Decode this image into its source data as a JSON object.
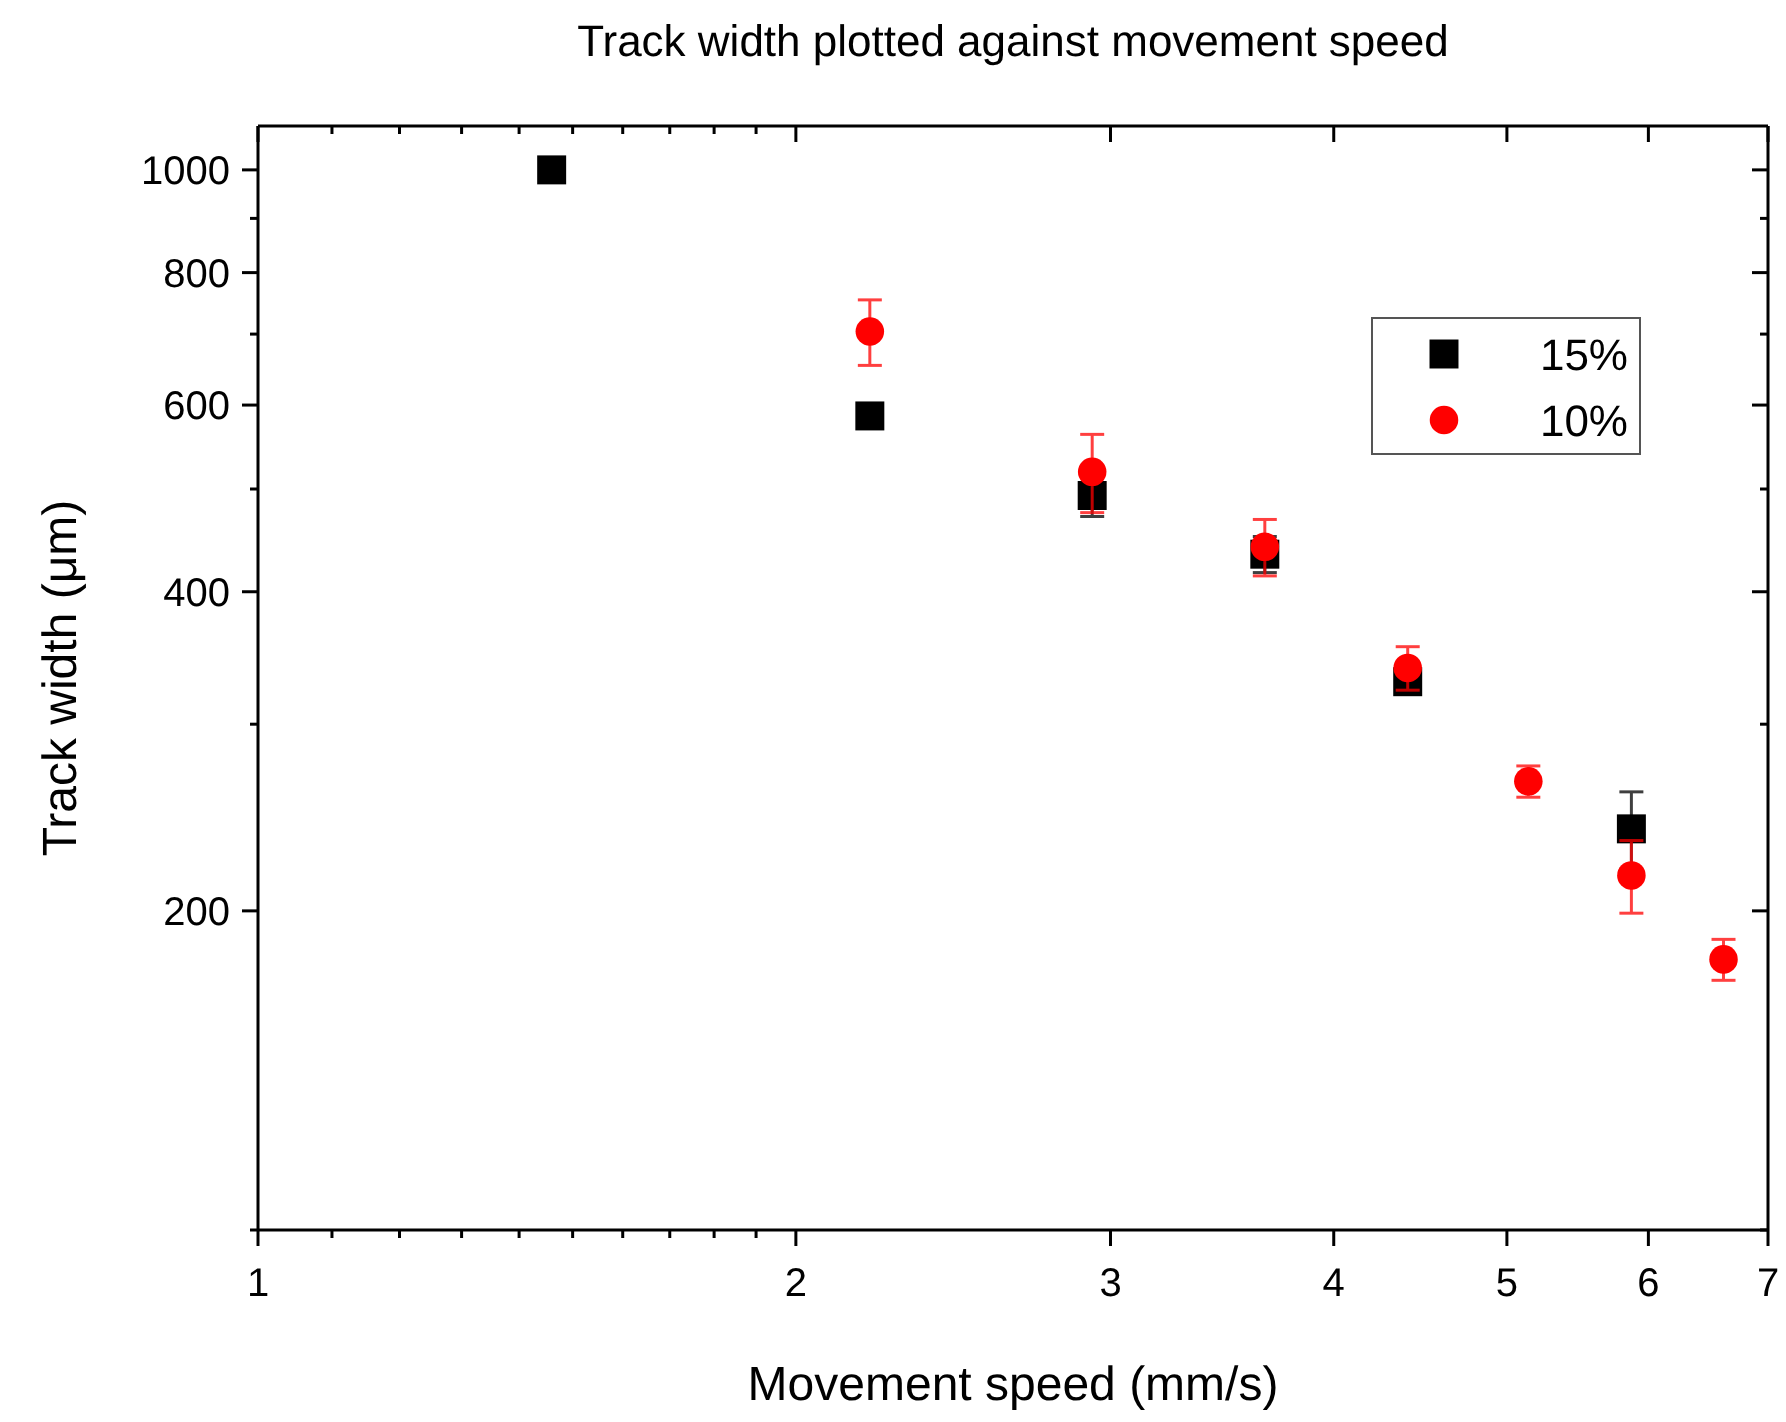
{
  "chart_data": {
    "type": "scatter",
    "title": "Track width plotted against movement speed",
    "xlabel": "Movement speed (mm/s)",
    "ylabel": "Track width (μm)",
    "log": "xy",
    "xlim": [
      1,
      7
    ],
    "ylim": [
      100,
      1100
    ],
    "xticks": [
      1,
      {
        "value": 1.1,
        "label": null
      },
      {
        "value": 1.2,
        "label": null
      },
      {
        "value": 1.3,
        "label": null
      },
      {
        "value": 1.4,
        "label": null
      },
      {
        "value": 1.5,
        "label": null
      },
      {
        "value": 1.6,
        "label": null
      },
      {
        "value": 1.7,
        "label": null
      },
      {
        "value": 1.8,
        "label": null
      },
      {
        "value": 1.9,
        "label": null
      },
      2,
      3,
      4,
      5,
      6,
      7
    ],
    "yticks": [
      {
        "value": 100,
        "label": null
      },
      200,
      {
        "value": 300,
        "label": null
      },
      400,
      {
        "value": 500,
        "label": null
      },
      600,
      {
        "value": 700,
        "label": null
      },
      800,
      {
        "value": 900,
        "label": null
      },
      1000
    ],
    "legend": "top right",
    "grid": false,
    "series": [
      {
        "name": "15%",
        "color": "#000000",
        "marker": "square",
        "x": [
          1.46,
          2.2,
          2.93,
          3.66,
          4.4,
          5.87
        ],
        "values": [
          1000,
          586,
          493,
          434,
          329,
          239
        ],
        "errors": [
          null,
          null,
          22,
          17,
          8,
          20
        ]
      },
      {
        "name": "10%",
        "color": "#ff0000",
        "marker": "circle",
        "x": [
          2.2,
          2.93,
          3.66,
          4.4,
          5.14,
          5.87,
          6.61
        ],
        "values": [
          704,
          519,
          441,
          339,
          265,
          216,
          180
        ],
        "errors": [
          50,
          44,
          27,
          16,
          9,
          17,
          8
        ]
      }
    ]
  }
}
